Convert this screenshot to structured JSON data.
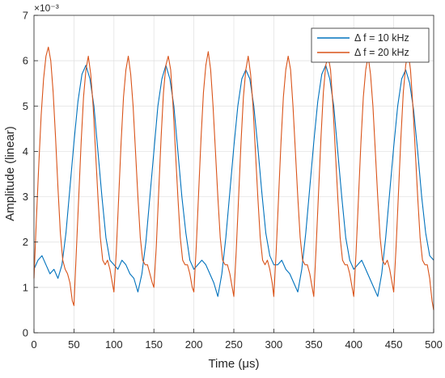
{
  "chart_data": {
    "type": "line",
    "title": "",
    "xlabel": "Time (μs)",
    "ylabel": "Amplitude (linear)",
    "y_exponent": "×10⁻³",
    "xlim": [
      0,
      500
    ],
    "ylim": [
      0,
      7
    ],
    "xticks": [
      0,
      50,
      100,
      150,
      200,
      250,
      300,
      350,
      400,
      450,
      500
    ],
    "yticks": [
      0,
      1,
      2,
      3,
      4,
      5,
      6,
      7
    ],
    "grid": true,
    "legend_position": "top-right",
    "series": [
      {
        "name": "Δ f = 10 kHz",
        "color": "#0072BD",
        "points": [
          [
            0,
            1.4
          ],
          [
            5,
            1.6
          ],
          [
            10,
            1.7
          ],
          [
            15,
            1.5
          ],
          [
            20,
            1.3
          ],
          [
            25,
            1.4
          ],
          [
            30,
            1.2
          ],
          [
            35,
            1.5
          ],
          [
            40,
            2.2
          ],
          [
            45,
            3.2
          ],
          [
            50,
            4.2
          ],
          [
            55,
            5.1
          ],
          [
            60,
            5.7
          ],
          [
            65,
            5.9
          ],
          [
            70,
            5.6
          ],
          [
            75,
            5.0
          ],
          [
            80,
            4.0
          ],
          [
            85,
            3.0
          ],
          [
            90,
            2.1
          ],
          [
            95,
            1.6
          ],
          [
            100,
            1.5
          ],
          [
            105,
            1.4
          ],
          [
            110,
            1.6
          ],
          [
            115,
            1.5
          ],
          [
            120,
            1.3
          ],
          [
            125,
            1.2
          ],
          [
            130,
            0.9
          ],
          [
            135,
            1.3
          ],
          [
            140,
            2.0
          ],
          [
            145,
            3.0
          ],
          [
            150,
            4.0
          ],
          [
            155,
            5.0
          ],
          [
            160,
            5.6
          ],
          [
            165,
            5.9
          ],
          [
            170,
            5.6
          ],
          [
            175,
            5.0
          ],
          [
            180,
            4.0
          ],
          [
            185,
            3.0
          ],
          [
            190,
            2.2
          ],
          [
            195,
            1.6
          ],
          [
            200,
            1.4
          ],
          [
            205,
            1.5
          ],
          [
            210,
            1.6
          ],
          [
            215,
            1.5
          ],
          [
            220,
            1.3
          ],
          [
            225,
            1.1
          ],
          [
            230,
            0.8
          ],
          [
            235,
            1.3
          ],
          [
            240,
            2.1
          ],
          [
            245,
            3.1
          ],
          [
            250,
            4.1
          ],
          [
            255,
            5.0
          ],
          [
            260,
            5.6
          ],
          [
            265,
            5.8
          ],
          [
            270,
            5.6
          ],
          [
            275,
            5.0
          ],
          [
            280,
            4.1
          ],
          [
            285,
            3.1
          ],
          [
            290,
            2.2
          ],
          [
            295,
            1.7
          ],
          [
            300,
            1.5
          ],
          [
            305,
            1.5
          ],
          [
            310,
            1.6
          ],
          [
            315,
            1.4
          ],
          [
            320,
            1.3
          ],
          [
            325,
            1.1
          ],
          [
            330,
            0.9
          ],
          [
            335,
            1.4
          ],
          [
            340,
            2.2
          ],
          [
            345,
            3.2
          ],
          [
            350,
            4.2
          ],
          [
            355,
            5.1
          ],
          [
            360,
            5.7
          ],
          [
            365,
            5.9
          ],
          [
            370,
            5.6
          ],
          [
            375,
            5.0
          ],
          [
            380,
            4.0
          ],
          [
            385,
            3.0
          ],
          [
            390,
            2.1
          ],
          [
            395,
            1.6
          ],
          [
            400,
            1.4
          ],
          [
            405,
            1.5
          ],
          [
            410,
            1.6
          ],
          [
            415,
            1.4
          ],
          [
            420,
            1.2
          ],
          [
            425,
            1.0
          ],
          [
            430,
            0.8
          ],
          [
            435,
            1.3
          ],
          [
            440,
            2.1
          ],
          [
            445,
            3.1
          ],
          [
            450,
            4.1
          ],
          [
            455,
            5.0
          ],
          [
            460,
            5.6
          ],
          [
            465,
            5.8
          ],
          [
            470,
            5.5
          ],
          [
            475,
            4.9
          ],
          [
            480,
            4.0
          ],
          [
            485,
            3.0
          ],
          [
            490,
            2.2
          ],
          [
            495,
            1.7
          ],
          [
            500,
            1.6
          ]
        ]
      },
      {
        "name": "Δ f = 20 kHz",
        "color": "#D95319",
        "points": [
          [
            0,
            1.2
          ],
          [
            3,
            2.5
          ],
          [
            6,
            3.7
          ],
          [
            9,
            4.8
          ],
          [
            12,
            5.6
          ],
          [
            15,
            6.1
          ],
          [
            18,
            6.3
          ],
          [
            21,
            6.0
          ],
          [
            24,
            5.3
          ],
          [
            27,
            4.3
          ],
          [
            30,
            3.2
          ],
          [
            33,
            2.2
          ],
          [
            36,
            1.6
          ],
          [
            39,
            1.4
          ],
          [
            42,
            1.3
          ],
          [
            45,
            1.1
          ],
          [
            48,
            0.7
          ],
          [
            50,
            0.6
          ],
          [
            53,
            1.8
          ],
          [
            56,
            3.0
          ],
          [
            59,
            4.2
          ],
          [
            62,
            5.2
          ],
          [
            65,
            5.8
          ],
          [
            68,
            6.1
          ],
          [
            71,
            5.7
          ],
          [
            74,
            5.0
          ],
          [
            77,
            4.0
          ],
          [
            80,
            3.0
          ],
          [
            83,
            2.1
          ],
          [
            86,
            1.6
          ],
          [
            89,
            1.5
          ],
          [
            92,
            1.6
          ],
          [
            95,
            1.4
          ],
          [
            98,
            1.1
          ],
          [
            100,
            0.9
          ],
          [
            103,
            1.8
          ],
          [
            106,
            3.0
          ],
          [
            109,
            4.2
          ],
          [
            112,
            5.2
          ],
          [
            115,
            5.8
          ],
          [
            118,
            6.1
          ],
          [
            121,
            5.7
          ],
          [
            124,
            5.0
          ],
          [
            127,
            4.0
          ],
          [
            130,
            3.0
          ],
          [
            133,
            2.1
          ],
          [
            136,
            1.6
          ],
          [
            139,
            1.5
          ],
          [
            142,
            1.5
          ],
          [
            145,
            1.3
          ],
          [
            148,
            1.1
          ],
          [
            150,
            1.0
          ],
          [
            153,
            1.9
          ],
          [
            156,
            3.1
          ],
          [
            159,
            4.3
          ],
          [
            162,
            5.3
          ],
          [
            165,
            5.9
          ],
          [
            168,
            6.1
          ],
          [
            171,
            5.8
          ],
          [
            174,
            5.0
          ],
          [
            177,
            4.0
          ],
          [
            180,
            3.0
          ],
          [
            183,
            2.1
          ],
          [
            186,
            1.6
          ],
          [
            189,
            1.5
          ],
          [
            192,
            1.5
          ],
          [
            195,
            1.3
          ],
          [
            198,
            1.0
          ],
          [
            200,
            0.9
          ],
          [
            203,
            1.9
          ],
          [
            206,
            3.1
          ],
          [
            209,
            4.3
          ],
          [
            212,
            5.3
          ],
          [
            215,
            5.9
          ],
          [
            218,
            6.2
          ],
          [
            221,
            5.8
          ],
          [
            224,
            5.0
          ],
          [
            227,
            4.0
          ],
          [
            230,
            3.0
          ],
          [
            233,
            2.1
          ],
          [
            236,
            1.6
          ],
          [
            239,
            1.5
          ],
          [
            242,
            1.5
          ],
          [
            245,
            1.3
          ],
          [
            248,
            1.0
          ],
          [
            250,
            0.8
          ],
          [
            253,
            1.8
          ],
          [
            256,
            3.0
          ],
          [
            259,
            4.2
          ],
          [
            262,
            5.2
          ],
          [
            265,
            5.8
          ],
          [
            268,
            6.1
          ],
          [
            271,
            5.7
          ],
          [
            274,
            5.0
          ],
          [
            277,
            4.0
          ],
          [
            280,
            3.0
          ],
          [
            283,
            2.1
          ],
          [
            286,
            1.6
          ],
          [
            289,
            1.5
          ],
          [
            292,
            1.6
          ],
          [
            295,
            1.4
          ],
          [
            298,
            1.1
          ],
          [
            300,
            0.8
          ],
          [
            303,
            1.8
          ],
          [
            306,
            3.0
          ],
          [
            309,
            4.2
          ],
          [
            312,
            5.2
          ],
          [
            315,
            5.8
          ],
          [
            318,
            6.1
          ],
          [
            321,
            5.8
          ],
          [
            324,
            5.0
          ],
          [
            327,
            4.0
          ],
          [
            330,
            3.0
          ],
          [
            333,
            2.1
          ],
          [
            336,
            1.6
          ],
          [
            339,
            1.5
          ],
          [
            342,
            1.5
          ],
          [
            345,
            1.3
          ],
          [
            348,
            1.0
          ],
          [
            350,
            0.8
          ],
          [
            353,
            1.9
          ],
          [
            356,
            3.1
          ],
          [
            359,
            4.3
          ],
          [
            362,
            5.3
          ],
          [
            365,
            5.9
          ],
          [
            368,
            6.1
          ],
          [
            371,
            5.8
          ],
          [
            374,
            5.0
          ],
          [
            377,
            4.0
          ],
          [
            380,
            3.0
          ],
          [
            383,
            2.1
          ],
          [
            386,
            1.6
          ],
          [
            389,
            1.5
          ],
          [
            392,
            1.5
          ],
          [
            395,
            1.3
          ],
          [
            398,
            1.0
          ],
          [
            400,
            0.8
          ],
          [
            403,
            1.8
          ],
          [
            406,
            3.0
          ],
          [
            409,
            4.2
          ],
          [
            412,
            5.2
          ],
          [
            415,
            5.8
          ],
          [
            418,
            6.1
          ],
          [
            421,
            5.7
          ],
          [
            424,
            5.0
          ],
          [
            427,
            4.0
          ],
          [
            430,
            3.0
          ],
          [
            433,
            2.1
          ],
          [
            436,
            1.6
          ],
          [
            439,
            1.5
          ],
          [
            442,
            1.6
          ],
          [
            445,
            1.4
          ],
          [
            448,
            1.1
          ],
          [
            450,
            0.9
          ],
          [
            453,
            1.9
          ],
          [
            456,
            3.1
          ],
          [
            459,
            4.3
          ],
          [
            462,
            5.3
          ],
          [
            465,
            5.9
          ],
          [
            468,
            6.2
          ],
          [
            471,
            5.8
          ],
          [
            474,
            5.0
          ],
          [
            477,
            4.0
          ],
          [
            480,
            3.0
          ],
          [
            483,
            2.1
          ],
          [
            486,
            1.6
          ],
          [
            489,
            1.5
          ],
          [
            492,
            1.5
          ],
          [
            495,
            1.2
          ],
          [
            498,
            0.7
          ],
          [
            500,
            0.5
          ]
        ]
      }
    ]
  }
}
